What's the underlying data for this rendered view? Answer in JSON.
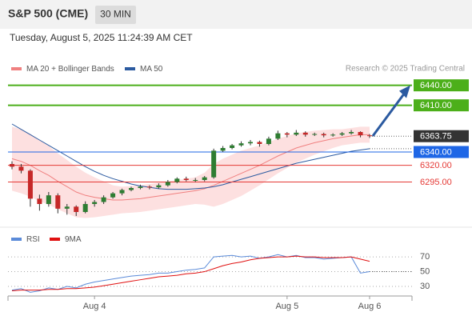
{
  "header": {
    "title": "S&P 500 (CME)",
    "interval": "30 MIN",
    "timestamp": "Tuesday, August 5, 2025 11:24:39 AM CET"
  },
  "chart_data": {
    "type": "candlestick",
    "legend": [
      {
        "name": "MA 20 + Bollinger Bands",
        "color": "#f08080"
      },
      {
        "name": "MA 50",
        "color": "#2b5aa0"
      }
    ],
    "credit": "Research © 2025 Trading Central",
    "categories": [
      null,
      null,
      null,
      null,
      null,
      null,
      null,
      null,
      null,
      "Aug 4",
      null,
      null,
      null,
      null,
      null,
      null,
      null,
      null,
      null,
      null,
      null,
      null,
      null,
      null,
      null,
      null,
      null,
      null,
      null,
      null,
      "Aug 5",
      null,
      null,
      null,
      null,
      null,
      null,
      null,
      null,
      "Aug 6"
    ],
    "candles": [
      [
        6322,
        6326,
        6314,
        6318
      ],
      [
        6318,
        6322,
        6308,
        6312
      ],
      [
        6312,
        6314,
        6258,
        6270
      ],
      [
        6270,
        6276,
        6252,
        6262
      ],
      [
        6262,
        6280,
        6258,
        6275
      ],
      [
        6275,
        6278,
        6248,
        6255
      ],
      [
        6255,
        6262,
        6246,
        6258
      ],
      [
        6258,
        6260,
        6244,
        6250
      ],
      [
        6250,
        6266,
        6248,
        6262
      ],
      [
        6262,
        6268,
        6258,
        6265
      ],
      [
        6265,
        6275,
        6262,
        6272
      ],
      [
        6272,
        6280,
        6270,
        6278
      ],
      [
        6278,
        6285,
        6275,
        6283
      ],
      [
        6283,
        6288,
        6281,
        6286
      ],
      [
        6286,
        6291,
        6284,
        6288
      ],
      [
        6288,
        6290,
        6284,
        6287
      ],
      [
        6287,
        6293,
        6285,
        6290
      ],
      [
        6290,
        6298,
        6288,
        6295
      ],
      [
        6295,
        6302,
        6293,
        6300
      ],
      [
        6300,
        6303,
        6296,
        6298
      ],
      [
        6298,
        6301,
        6295,
        6298
      ],
      [
        6298,
        6304,
        6296,
        6302
      ],
      [
        6302,
        6345,
        6300,
        6342
      ],
      [
        6342,
        6349,
        6340,
        6346
      ],
      [
        6346,
        6352,
        6344,
        6350
      ],
      [
        6350,
        6356,
        6348,
        6353
      ],
      [
        6353,
        6358,
        6350,
        6355
      ],
      [
        6355,
        6357,
        6348,
        6352
      ],
      [
        6352,
        6363,
        6350,
        6360
      ],
      [
        6360,
        6372,
        6358,
        6368
      ],
      [
        6368,
        6370,
        6362,
        6366
      ],
      [
        6366,
        6373,
        6364,
        6369
      ],
      [
        6369,
        6371,
        6363,
        6366
      ],
      [
        6366,
        6369,
        6364,
        6367
      ],
      [
        6367,
        6369,
        6362,
        6365
      ],
      [
        6365,
        6368,
        6363,
        6366
      ],
      [
        6366,
        6370,
        6364,
        6368
      ],
      [
        6368,
        6373,
        6366,
        6370
      ],
      [
        6370,
        6371,
        6362,
        6365
      ],
      [
        6365,
        6367,
        6361,
        6364
      ]
    ],
    "up_color": "#2e7d32",
    "down_color": "#c62828",
    "ma20": [
      6330,
      6326,
      6320,
      6312,
      6305,
      6296,
      6288,
      6280,
      6275,
      6272,
      6270,
      6268,
      6268,
      6269,
      6270,
      6272,
      6274,
      6276,
      6278,
      6280,
      6282,
      6285,
      6290,
      6296,
      6302,
      6308,
      6314,
      6320,
      6327,
      6334,
      6340,
      6346,
      6350,
      6354,
      6357,
      6360,
      6362,
      6364,
      6366,
      6366
    ],
    "bb_upper": [
      6378,
      6374,
      6367,
      6358,
      6349,
      6338,
      6328,
      6318,
      6309,
      6302,
      6296,
      6290,
      6288,
      6289,
      6290,
      6292,
      6294,
      6296,
      6298,
      6300,
      6302,
      6309,
      6322,
      6330,
      6336,
      6342,
      6346,
      6350,
      6355,
      6360,
      6364,
      6368,
      6370,
      6372,
      6373,
      6374,
      6374,
      6376,
      6378,
      6378
    ],
    "bb_lower": [
      6282,
      6278,
      6273,
      6266,
      6261,
      6254,
      6248,
      6242,
      6241,
      6242,
      6244,
      6246,
      6248,
      6249,
      6250,
      6252,
      6254,
      6256,
      6258,
      6260,
      6262,
      6261,
      6258,
      6262,
      6268,
      6274,
      6282,
      6290,
      6299,
      6308,
      6316,
      6324,
      6330,
      6336,
      6341,
      6346,
      6350,
      6352,
      6354,
      6354
    ],
    "ma50": [
      6382,
      6374,
      6366,
      6358,
      6350,
      6342,
      6334,
      6326,
      6318,
      6311,
      6305,
      6300,
      6296,
      6292,
      6289,
      6287,
      6285,
      6284,
      6284,
      6284,
      6285,
      6286,
      6288,
      6291,
      6295,
      6299,
      6303,
      6307,
      6311,
      6315,
      6319,
      6323,
      6326,
      6329,
      6332,
      6335,
      6338,
      6341,
      6343,
      6345
    ],
    "ylim": [
      6232,
      6460
    ],
    "levels": [
      {
        "value": 6440,
        "label": "6440.00",
        "color": "#4caf1a",
        "boxed": true,
        "width": 2
      },
      {
        "value": 6410,
        "label": "6410.00",
        "color": "#4caf1a",
        "boxed": true,
        "width": 2
      },
      {
        "value": 6363.75,
        "label": "6363.75",
        "color": "#333333",
        "boxed": true,
        "width": 0
      },
      {
        "value": 6340,
        "label": "6340.00",
        "color": "#1e66e6",
        "boxed": true,
        "width": 1
      },
      {
        "value": 6320,
        "label": "6320.00",
        "color": "#e53935",
        "boxed": false,
        "width": 1
      },
      {
        "value": 6295,
        "label": "6295.00",
        "color": "#e53935",
        "boxed": false,
        "width": 1
      }
    ],
    "rsi": {
      "legend": [
        {
          "name": "RSI",
          "color": "#5b8bd9"
        },
        {
          "name": "9MA",
          "color": "#e01010"
        }
      ],
      "values": [
        25,
        27,
        22,
        24,
        28,
        26,
        30,
        28,
        33,
        36,
        38,
        40,
        42,
        44,
        45,
        46,
        48,
        48,
        50,
        52,
        53,
        55,
        70,
        71,
        72,
        70,
        71,
        68,
        70,
        73,
        70,
        72,
        69,
        69,
        67,
        68,
        69,
        70,
        48,
        50
      ],
      "ma9": [
        24,
        25,
        25,
        25,
        26,
        26,
        27,
        27,
        28,
        29,
        31,
        33,
        35,
        37,
        39,
        41,
        43,
        44,
        45,
        47,
        48,
        50,
        54,
        58,
        61,
        63,
        66,
        68,
        69,
        70,
        70,
        71,
        70,
        70,
        69,
        69,
        69,
        70,
        67,
        64
      ],
      "ylim": [
        17,
        82
      ],
      "yticks": [
        70,
        50,
        30
      ]
    }
  }
}
